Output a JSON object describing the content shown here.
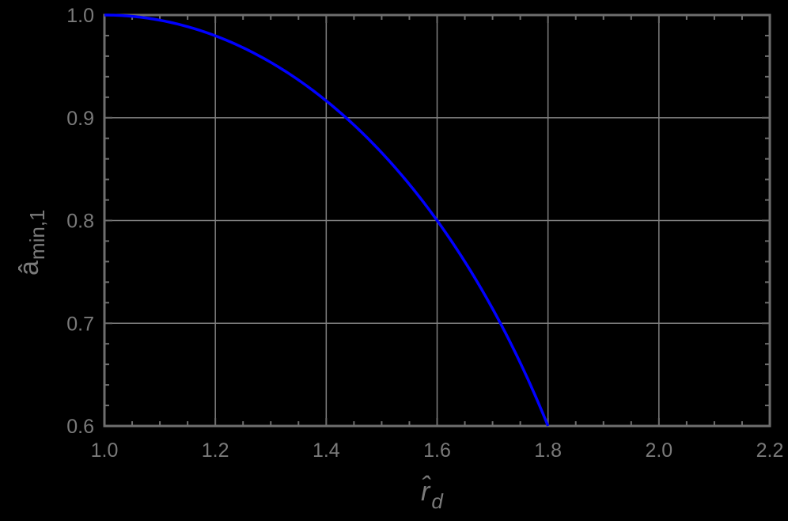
{
  "chart_data": {
    "type": "line",
    "title": "",
    "xlabel": "r̂_d",
    "xlabel_main": "r̂",
    "xlabel_sub": "d",
    "ylabel": "â_min,1",
    "ylabel_main": "â",
    "ylabel_sub": "min,1",
    "xlim": [
      1.0,
      2.2
    ],
    "ylim": [
      0.6,
      1.0
    ],
    "grid": true,
    "legend": null,
    "x_ticks": [
      "1.0",
      "1.2",
      "1.4",
      "1.6",
      "1.8",
      "2.0",
      "2.2"
    ],
    "y_ticks": [
      "0.6",
      "0.7",
      "0.8",
      "0.9",
      "1.0"
    ],
    "series": [
      {
        "name": "a_min,1",
        "color": "#0000ff",
        "x": [
          1.0,
          1.1,
          1.2,
          1.3,
          1.4,
          1.436,
          1.5,
          1.6,
          1.7,
          1.75,
          1.8
        ],
        "y": [
          1.0,
          0.995,
          0.98,
          0.954,
          0.917,
          0.9,
          0.866,
          0.8,
          0.714,
          0.661,
          0.6
        ]
      }
    ]
  },
  "colors": {
    "background": "#000000",
    "frame": "#6e6e6e",
    "grid": "#808080",
    "text": "#7a7a7a",
    "curve": "#0000ff"
  }
}
